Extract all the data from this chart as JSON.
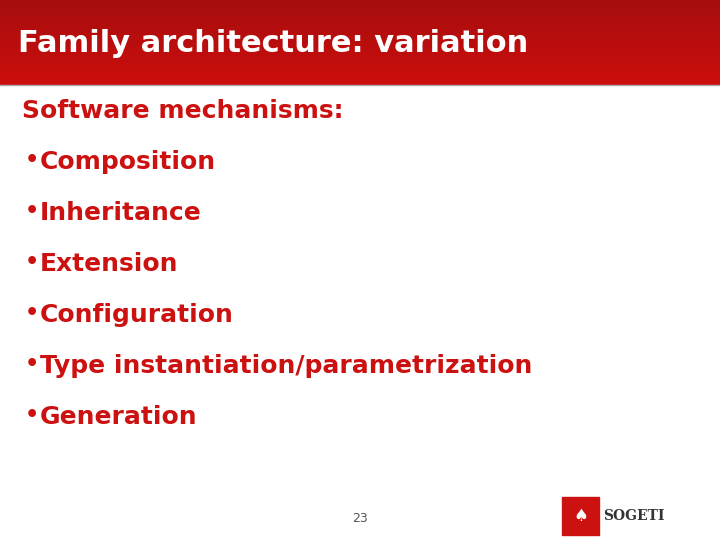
{
  "title": "Family architecture: variation",
  "title_color": "#ffffff",
  "title_bg_top": "#cc0000",
  "title_bg_bottom": "#8b0000",
  "background_color": "#ffffff",
  "text_color": "#cc1111",
  "header_text": "Software mechanisms:",
  "bullet_items": [
    "Composition",
    "Inheritance",
    "Extension",
    "Configuration",
    "Type instantiation/parametrization",
    "Generation"
  ],
  "page_number": "23",
  "sogeti_bg": "#cc1111",
  "sogeti_text": "SOGETI"
}
